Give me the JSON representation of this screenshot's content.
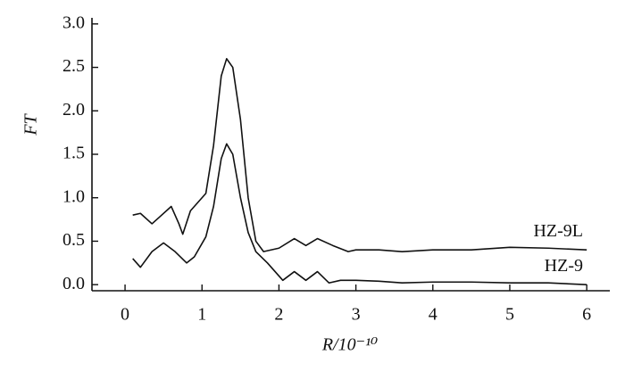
{
  "chart_data": {
    "type": "line",
    "xlabel": "R/10⁻¹⁰",
    "ylabel": "FT",
    "series": [
      {
        "name": "HZ-9L",
        "color": "#111111",
        "x": [
          0.1,
          0.2,
          0.35,
          0.45,
          0.6,
          0.7,
          0.75,
          0.85,
          0.95,
          1.05,
          1.15,
          1.25,
          1.32,
          1.4,
          1.5,
          1.6,
          1.7,
          1.8,
          2.0,
          2.2,
          2.35,
          2.5,
          2.7,
          2.9,
          3.0,
          3.3,
          3.6,
          4.0,
          4.5,
          5.0,
          5.5,
          6.0
        ],
        "values": [
          0.8,
          0.82,
          0.7,
          0.78,
          0.9,
          0.7,
          0.58,
          0.85,
          0.95,
          1.05,
          1.6,
          2.4,
          2.6,
          2.5,
          1.9,
          1.0,
          0.5,
          0.38,
          0.42,
          0.53,
          0.45,
          0.53,
          0.45,
          0.38,
          0.4,
          0.4,
          0.38,
          0.4,
          0.4,
          0.43,
          0.42,
          0.4
        ]
      },
      {
        "name": "HZ-9",
        "color": "#111111",
        "x": [
          0.1,
          0.2,
          0.35,
          0.5,
          0.65,
          0.8,
          0.9,
          1.05,
          1.15,
          1.25,
          1.32,
          1.4,
          1.5,
          1.6,
          1.7,
          1.85,
          2.05,
          2.2,
          2.35,
          2.5,
          2.65,
          2.8,
          3.0,
          3.3,
          3.6,
          4.0,
          4.5,
          5.0,
          5.5,
          6.0
        ],
        "values": [
          0.3,
          0.2,
          0.38,
          0.48,
          0.38,
          0.25,
          0.32,
          0.55,
          0.9,
          1.45,
          1.62,
          1.5,
          1.0,
          0.6,
          0.38,
          0.25,
          0.05,
          0.15,
          0.05,
          0.15,
          0.02,
          0.05,
          0.05,
          0.04,
          0.02,
          0.03,
          0.03,
          0.02,
          0.02,
          0.0
        ]
      }
    ],
    "xlim": [
      -0.43,
      6.3
    ],
    "ylim": [
      -0.07,
      3.07
    ],
    "xticks": [
      0,
      1,
      2,
      3,
      4,
      5,
      6
    ],
    "yticks": [
      {
        "value": 0,
        "label": "0.0"
      },
      0.5,
      {
        "value": 1,
        "label": "1.0"
      },
      1.5,
      {
        "value": 2,
        "label": "2.0"
      },
      2.5,
      {
        "value": 3,
        "label": "3.0"
      }
    ]
  }
}
